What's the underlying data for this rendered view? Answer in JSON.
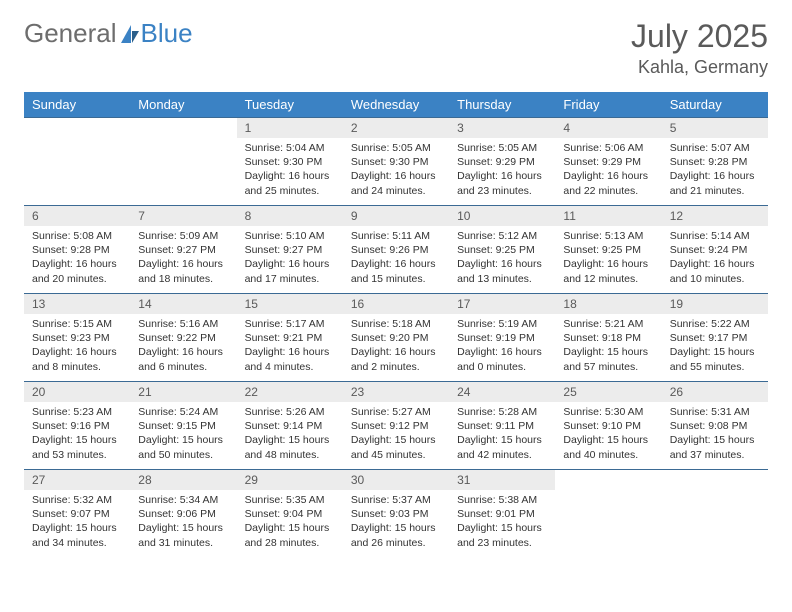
{
  "brand": {
    "part1": "General",
    "part2": "Blue"
  },
  "title": "July 2025",
  "location": "Kahla, Germany",
  "colors": {
    "header_bg": "#3b82c4",
    "header_text": "#ffffff",
    "daynum_bg": "#ececec",
    "row_border": "#3b6a94"
  },
  "weekdays": [
    "Sunday",
    "Monday",
    "Tuesday",
    "Wednesday",
    "Thursday",
    "Friday",
    "Saturday"
  ],
  "weeks": [
    [
      null,
      null,
      {
        "n": "1",
        "sr": "5:04 AM",
        "ss": "9:30 PM",
        "dl": "16 hours and 25 minutes."
      },
      {
        "n": "2",
        "sr": "5:05 AM",
        "ss": "9:30 PM",
        "dl": "16 hours and 24 minutes."
      },
      {
        "n": "3",
        "sr": "5:05 AM",
        "ss": "9:29 PM",
        "dl": "16 hours and 23 minutes."
      },
      {
        "n": "4",
        "sr": "5:06 AM",
        "ss": "9:29 PM",
        "dl": "16 hours and 22 minutes."
      },
      {
        "n": "5",
        "sr": "5:07 AM",
        "ss": "9:28 PM",
        "dl": "16 hours and 21 minutes."
      }
    ],
    [
      {
        "n": "6",
        "sr": "5:08 AM",
        "ss": "9:28 PM",
        "dl": "16 hours and 20 minutes."
      },
      {
        "n": "7",
        "sr": "5:09 AM",
        "ss": "9:27 PM",
        "dl": "16 hours and 18 minutes."
      },
      {
        "n": "8",
        "sr": "5:10 AM",
        "ss": "9:27 PM",
        "dl": "16 hours and 17 minutes."
      },
      {
        "n": "9",
        "sr": "5:11 AM",
        "ss": "9:26 PM",
        "dl": "16 hours and 15 minutes."
      },
      {
        "n": "10",
        "sr": "5:12 AM",
        "ss": "9:25 PM",
        "dl": "16 hours and 13 minutes."
      },
      {
        "n": "11",
        "sr": "5:13 AM",
        "ss": "9:25 PM",
        "dl": "16 hours and 12 minutes."
      },
      {
        "n": "12",
        "sr": "5:14 AM",
        "ss": "9:24 PM",
        "dl": "16 hours and 10 minutes."
      }
    ],
    [
      {
        "n": "13",
        "sr": "5:15 AM",
        "ss": "9:23 PM",
        "dl": "16 hours and 8 minutes."
      },
      {
        "n": "14",
        "sr": "5:16 AM",
        "ss": "9:22 PM",
        "dl": "16 hours and 6 minutes."
      },
      {
        "n": "15",
        "sr": "5:17 AM",
        "ss": "9:21 PM",
        "dl": "16 hours and 4 minutes."
      },
      {
        "n": "16",
        "sr": "5:18 AM",
        "ss": "9:20 PM",
        "dl": "16 hours and 2 minutes."
      },
      {
        "n": "17",
        "sr": "5:19 AM",
        "ss": "9:19 PM",
        "dl": "16 hours and 0 minutes."
      },
      {
        "n": "18",
        "sr": "5:21 AM",
        "ss": "9:18 PM",
        "dl": "15 hours and 57 minutes."
      },
      {
        "n": "19",
        "sr": "5:22 AM",
        "ss": "9:17 PM",
        "dl": "15 hours and 55 minutes."
      }
    ],
    [
      {
        "n": "20",
        "sr": "5:23 AM",
        "ss": "9:16 PM",
        "dl": "15 hours and 53 minutes."
      },
      {
        "n": "21",
        "sr": "5:24 AM",
        "ss": "9:15 PM",
        "dl": "15 hours and 50 minutes."
      },
      {
        "n": "22",
        "sr": "5:26 AM",
        "ss": "9:14 PM",
        "dl": "15 hours and 48 minutes."
      },
      {
        "n": "23",
        "sr": "5:27 AM",
        "ss": "9:12 PM",
        "dl": "15 hours and 45 minutes."
      },
      {
        "n": "24",
        "sr": "5:28 AM",
        "ss": "9:11 PM",
        "dl": "15 hours and 42 minutes."
      },
      {
        "n": "25",
        "sr": "5:30 AM",
        "ss": "9:10 PM",
        "dl": "15 hours and 40 minutes."
      },
      {
        "n": "26",
        "sr": "5:31 AM",
        "ss": "9:08 PM",
        "dl": "15 hours and 37 minutes."
      }
    ],
    [
      {
        "n": "27",
        "sr": "5:32 AM",
        "ss": "9:07 PM",
        "dl": "15 hours and 34 minutes."
      },
      {
        "n": "28",
        "sr": "5:34 AM",
        "ss": "9:06 PM",
        "dl": "15 hours and 31 minutes."
      },
      {
        "n": "29",
        "sr": "5:35 AM",
        "ss": "9:04 PM",
        "dl": "15 hours and 28 minutes."
      },
      {
        "n": "30",
        "sr": "5:37 AM",
        "ss": "9:03 PM",
        "dl": "15 hours and 26 minutes."
      },
      {
        "n": "31",
        "sr": "5:38 AM",
        "ss": "9:01 PM",
        "dl": "15 hours and 23 minutes."
      },
      null,
      null
    ]
  ]
}
